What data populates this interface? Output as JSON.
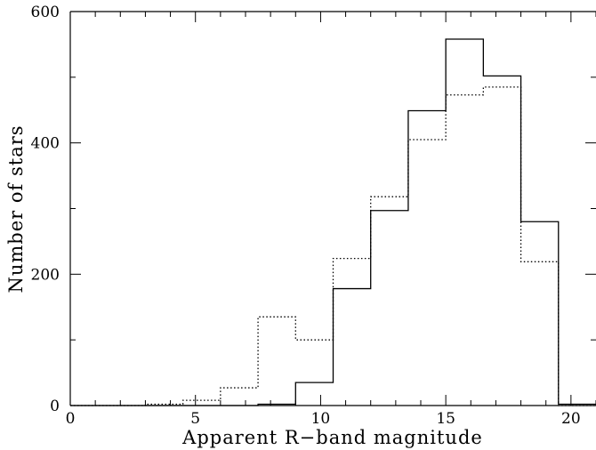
{
  "chart_data": {
    "type": "bar",
    "title": "",
    "xlabel": "Apparent R−band magnitude",
    "ylabel": "Number of stars",
    "xlim": [
      0,
      21
    ],
    "ylim": [
      0,
      600
    ],
    "x_ticks": [
      0,
      5,
      10,
      15,
      20
    ],
    "x_tick_labels": [
      "0",
      "5",
      "10",
      "15",
      "20"
    ],
    "y_ticks": [
      0,
      200,
      400,
      600
    ],
    "y_tick_labels": [
      "0",
      "200",
      "400",
      "600"
    ],
    "grid": false,
    "bin_edges": [
      0,
      1.5,
      3,
      4.5,
      6,
      7.5,
      9,
      10.5,
      12,
      13.5,
      15,
      16.5,
      18,
      19.5,
      21
    ],
    "series": [
      {
        "style": "solid",
        "color": "#000000",
        "values": [
          0,
          0,
          0,
          0,
          0,
          2,
          35,
          178,
          297,
          449,
          558,
          502,
          280,
          2
        ]
      },
      {
        "style": "dotted",
        "color": "#000000",
        "values": [
          0,
          0,
          2,
          8,
          27,
          135,
          100,
          224,
          318,
          405,
          473,
          485,
          219,
          0
        ]
      }
    ]
  }
}
